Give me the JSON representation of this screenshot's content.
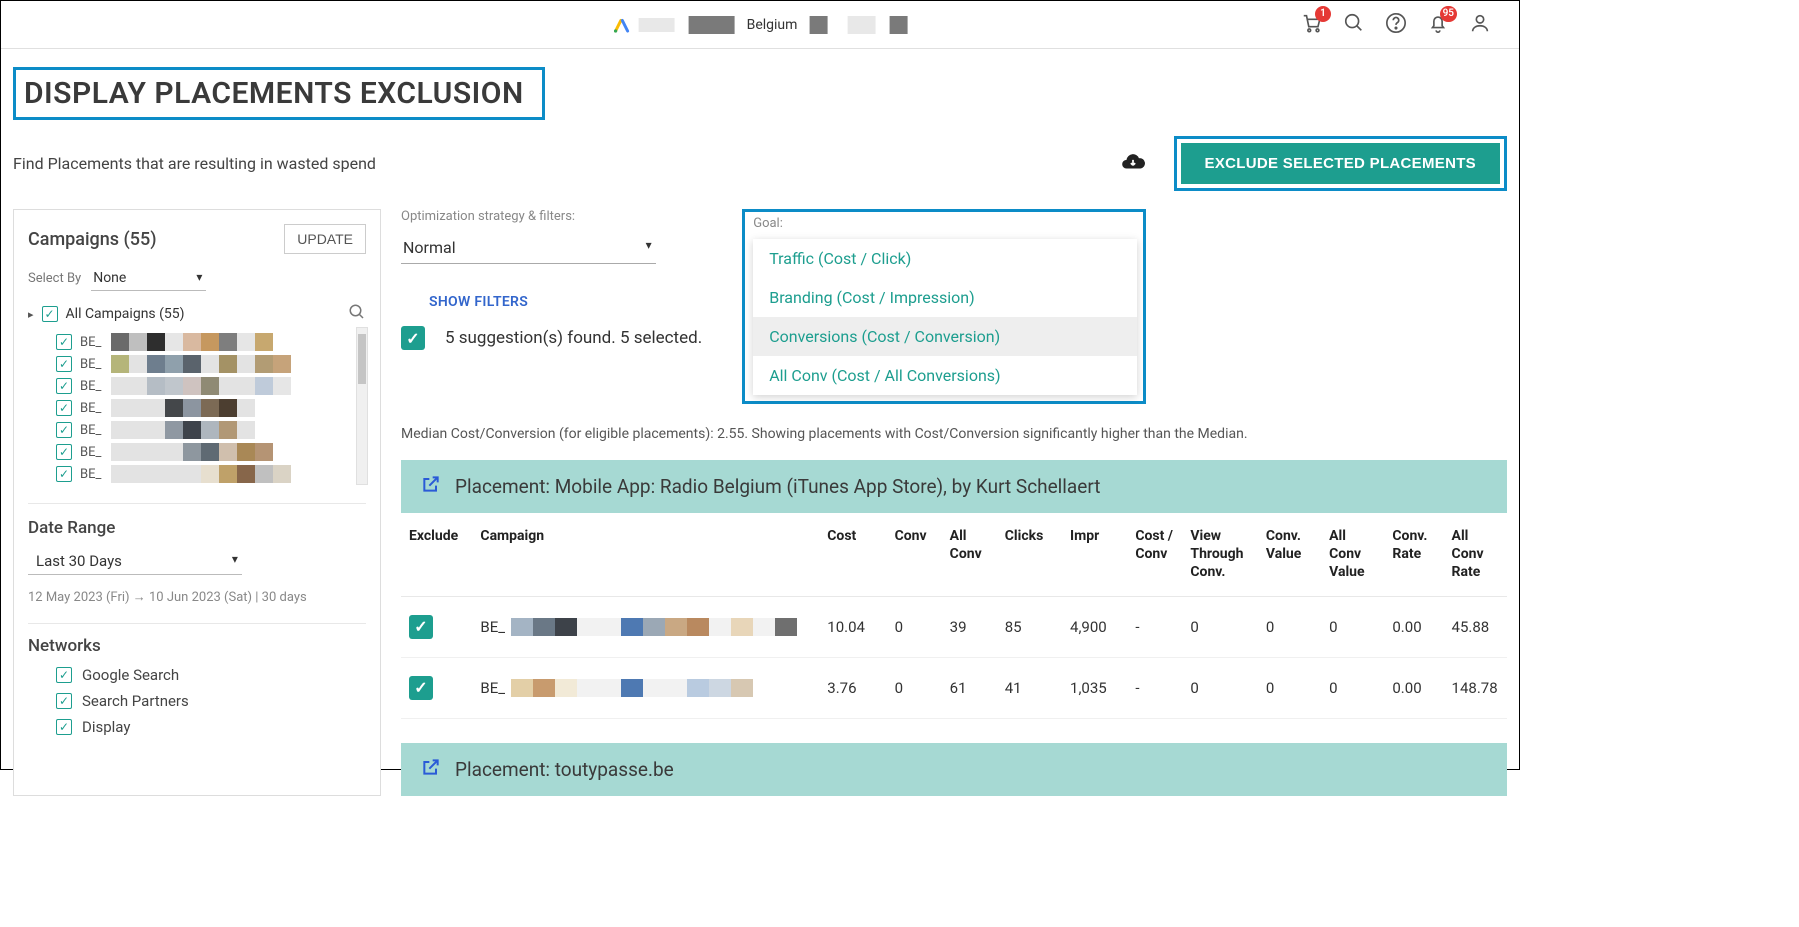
{
  "header": {
    "country_label": "Belgium",
    "cart_badge": "1",
    "bell_badge": "95"
  },
  "page": {
    "title": "DISPLAY PLACEMENTS EXCLUSION",
    "subtitle": "Find Placements that are resulting in wasted spend",
    "exclude_button": "EXCLUDE SELECTED PLACEMENTS"
  },
  "sidebar": {
    "campaigns_title": "Campaigns (55)",
    "update_button": "UPDATE",
    "select_by_label": "Select By",
    "select_by_value": "None",
    "all_campaigns_label": "All Campaigns (55)",
    "campaign_rows": [
      {
        "prefix": "BE_",
        "colors": [
          "#6a6a6a",
          "#bfbfbf",
          "#2e2e2e",
          "#e6e6e6",
          "#d9b9a0",
          "#c6985f",
          "#7e7e7e",
          "#e6e6e6",
          "#c7a86f"
        ]
      },
      {
        "prefix": "BE_",
        "colors": [
          "#b5b57a",
          "#e3e3e3",
          "#6e7e8e",
          "#8fa0ac",
          "#5a636c",
          "#e3e3e3",
          "#a49265",
          "#e3e3e3",
          "#b29c74",
          "#c6a37a"
        ]
      },
      {
        "prefix": "BE_",
        "colors": [
          "#e3e3e3",
          "#e3e3e3",
          "#b5bdc5",
          "#c0c6cc",
          "#cfc3c0",
          "#8f8a74",
          "#e3e3e3",
          "#e3e3e3",
          "#bfcbda",
          "#e6e6e6"
        ]
      },
      {
        "prefix": "BE_",
        "colors": [
          "#e3e3e3",
          "#e3e3e3",
          "#e3e3e3",
          "#44474a",
          "#8c95a0",
          "#7c6a55",
          "#4c3e30",
          "#e3e3e3"
        ]
      },
      {
        "prefix": "BE_",
        "colors": [
          "#e3e3e3",
          "#e3e3e3",
          "#e3e3e3",
          "#8f98a2",
          "#3e434b",
          "#aeb6be",
          "#b19876",
          "#e3e3e3"
        ]
      },
      {
        "prefix": "BE_",
        "colors": [
          "#e3e3e3",
          "#e3e3e3",
          "#e3e3e3",
          "#e3e3e3",
          "#8e979f",
          "#5f6a73",
          "#d0bfad",
          "#a98856",
          "#b59474"
        ]
      },
      {
        "prefix": "BE_",
        "colors": [
          "#e3e3e3",
          "#e3e3e3",
          "#e3e3e3",
          "#e3e3e3",
          "#e3e3e3",
          "#e7dfcf",
          "#bfa169",
          "#87664a",
          "#c0c0c0",
          "#dad3c5"
        ]
      }
    ],
    "date_range_label": "Date Range",
    "date_range_value": "Last 30 Days",
    "date_range_detail": "12 May 2023 (Fri) → 10 Jun 2023 (Sat) | 30 days",
    "networks_label": "Networks",
    "networks": [
      "Google Search",
      "Search Partners",
      "Display"
    ]
  },
  "filters": {
    "strategy_label": "Optimization strategy & filters:",
    "strategy_value": "Normal",
    "goal_label": "Goal:",
    "goal_options": [
      "Traffic (Cost / Click)",
      "Branding (Cost / Impression)",
      "Conversions (Cost / Conversion)",
      "All Conv (Cost / All Conversions)"
    ],
    "show_filters": "SHOW FILTERS"
  },
  "suggestions_text": "5 suggestion(s) found. 5 selected.",
  "median_note": "Median Cost/Conversion (for eligible placements): 2.55. Showing placements with Cost/Conversion significantly higher than the Median.",
  "columns": [
    "Exclude",
    "Campaign",
    "Cost",
    "Conv",
    "All Conv",
    "Clicks",
    "Impr",
    "Cost / Conv",
    "View Through Conv.",
    "Conv. Value",
    "All Conv Value",
    "Conv. Rate",
    "All Conv Rate"
  ],
  "placements": [
    {
      "title": "Placement: Mobile App: Radio Belgium (iTunes App Store), by Kurt Schellaert",
      "rows": [
        {
          "campaign_prefix": "BE_",
          "colors": [
            "#a4b4c4",
            "#6a7886",
            "#3d4249",
            "#f2f2f2",
            "#f2f2f2",
            "#4e79b2",
            "#9ba8b5",
            "#c9a883",
            "#b9895f",
            "#f2f2f2",
            "#e8d6b9",
            "#f2f2f2",
            "#6f6f6f"
          ],
          "cost": "10.04",
          "conv": "0",
          "all_conv": "39",
          "clicks": "85",
          "impr": "4,900",
          "cost_conv": "-",
          "vtc": "0",
          "conv_val": "0",
          "all_conv_val": "0",
          "conv_rate": "0.00",
          "all_conv_rate": "45.88"
        },
        {
          "campaign_prefix": "BE_",
          "colors": [
            "#e3cfa7",
            "#c89b6e",
            "#f2ead7",
            "#f2f2f2",
            "#f2f2f2",
            "#4e79b2",
            "#f2f2f2",
            "#f2f2f2",
            "#b9cbe0",
            "#cdd7e2",
            "#d7c8b2"
          ],
          "cost": "3.76",
          "conv": "0",
          "all_conv": "61",
          "clicks": "41",
          "impr": "1,035",
          "cost_conv": "-",
          "vtc": "0",
          "conv_val": "0",
          "all_conv_val": "0",
          "conv_rate": "0.00",
          "all_conv_rate": "148.78"
        }
      ]
    },
    {
      "title": "Placement: toutypasse.be",
      "rows": []
    }
  ]
}
